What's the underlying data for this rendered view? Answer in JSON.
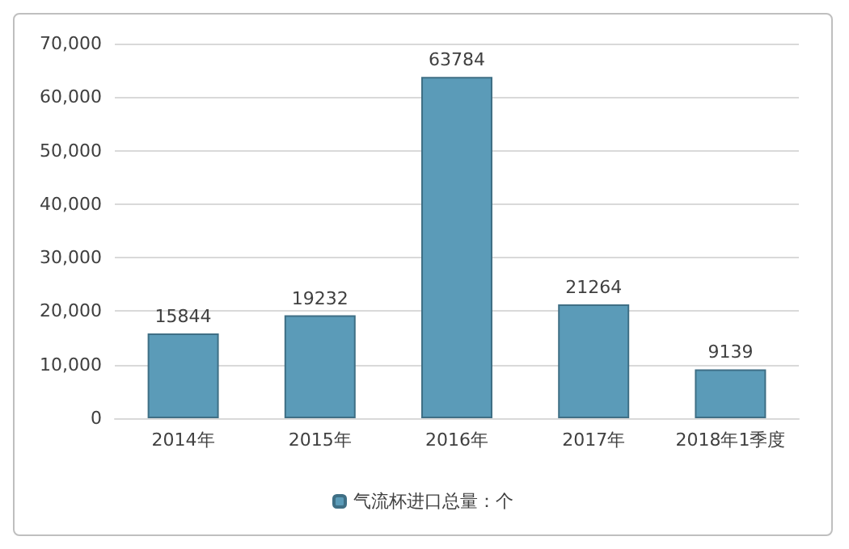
{
  "chart_data": {
    "type": "bar",
    "categories": [
      "2014年",
      "2015年",
      "2016年",
      "2017年",
      "2018年1季度"
    ],
    "series": [
      {
        "name": "气流杯进口总量：个",
        "color": "#5b9bb8",
        "values": [
          15844,
          19232,
          63784,
          21264,
          9139
        ]
      }
    ],
    "ylim": [
      0,
      70000
    ],
    "yticks": [
      0,
      {
        "value": 10000,
        "label": "10,000"
      },
      {
        "value": 20000,
        "label": "20,000"
      },
      {
        "value": 30000,
        "label": "30,000"
      },
      {
        "value": 40000,
        "label": "40,000"
      },
      {
        "value": 50000,
        "label": "50,000"
      },
      {
        "value": 60000,
        "label": "60,000"
      },
      {
        "value": 70000,
        "label": "70,000"
      }
    ],
    "grid": "y",
    "legend": "bottom",
    "data_labels": true
  }
}
